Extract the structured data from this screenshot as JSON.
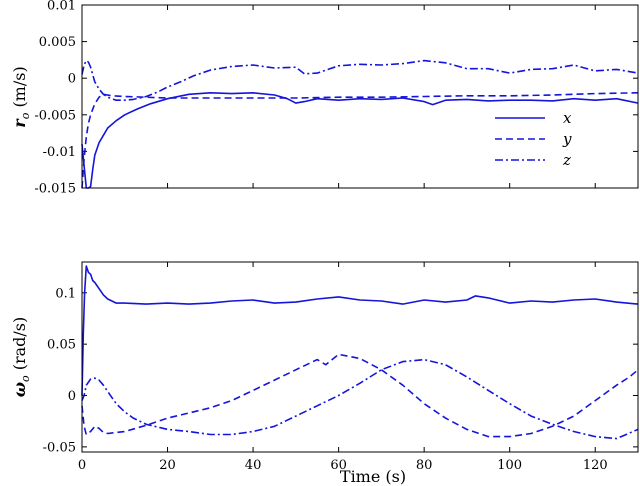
{
  "chart_data": [
    {
      "type": "line",
      "panel": "top",
      "ylabel": "r_o (m/s)",
      "ylabel_symbol": "r",
      "ylabel_subscript": "o",
      "ylabel_unit": " (m/s)",
      "xlim": [
        0,
        130
      ],
      "ylim": [
        -0.015,
        0.01
      ],
      "xticks": [
        0,
        20,
        40,
        60,
        80,
        100,
        120
      ],
      "yticks": [
        -0.015,
        -0.01,
        -0.005,
        0,
        0.005,
        0.01
      ],
      "ytick_labels": [
        "-0.015",
        "-0.01",
        "-0.005",
        "0",
        "0.005",
        "0.01"
      ],
      "xtick_labels_visible": false,
      "color": "#1414dc",
      "legend": {
        "position": "right",
        "entries": [
          "x",
          "y",
          "z"
        ]
      },
      "series": [
        {
          "name": "x",
          "dash": "solid",
          "x": [
            0,
            0.5,
            1,
            1.5,
            2,
            2.5,
            3,
            4,
            5,
            6,
            8,
            10,
            13,
            16,
            20,
            25,
            30,
            35,
            40,
            45,
            48,
            50,
            52,
            55,
            60,
            65,
            70,
            75,
            80,
            82,
            85,
            90,
            95,
            100,
            105,
            110,
            115,
            120,
            125,
            130
          ],
          "y": [
            -0.009,
            -0.012,
            -0.015,
            -0.0155,
            -0.0148,
            -0.0125,
            -0.0105,
            -0.0088,
            -0.0078,
            -0.0068,
            -0.0058,
            -0.005,
            -0.0042,
            -0.0035,
            -0.0028,
            -0.0022,
            -0.002,
            -0.0021,
            -0.002,
            -0.0023,
            -0.0028,
            -0.0034,
            -0.0032,
            -0.0028,
            -0.003,
            -0.0028,
            -0.0029,
            -0.0027,
            -0.0032,
            -0.0036,
            -0.003,
            -0.0029,
            -0.0031,
            -0.003,
            -0.003,
            -0.0031,
            -0.0028,
            -0.003,
            -0.0028,
            -0.0034
          ]
        },
        {
          "name": "y",
          "dash": "dashed",
          "x": [
            0,
            0.5,
            1,
            1.5,
            2,
            3,
            4,
            5,
            7,
            10,
            15,
            20,
            30,
            40,
            50,
            60,
            70,
            80,
            90,
            100,
            110,
            120,
            130
          ],
          "y": [
            -0.015,
            -0.011,
            -0.008,
            -0.0062,
            -0.005,
            -0.0035,
            -0.0026,
            -0.0022,
            -0.0024,
            -0.0025,
            -0.0026,
            -0.0027,
            -0.0027,
            -0.0027,
            -0.0027,
            -0.0026,
            -0.0026,
            -0.0025,
            -0.0024,
            -0.0024,
            -0.0023,
            -0.0021,
            -0.002
          ]
        },
        {
          "name": "z",
          "dash": "dashdot",
          "x": [
            0,
            0.5,
            1,
            1.5,
            2,
            3,
            4,
            5,
            6,
            7,
            8,
            10,
            12,
            15,
            18,
            20,
            23,
            26,
            30,
            35,
            40,
            45,
            50,
            52,
            55,
            60,
            65,
            70,
            75,
            80,
            85,
            90,
            95,
            100,
            105,
            110,
            115,
            120,
            125,
            130
          ],
          "y": [
            0.0005,
            0.0018,
            0.0024,
            0.0022,
            0.0015,
            -0.0005,
            -0.0015,
            -0.0022,
            -0.0026,
            -0.0028,
            -0.003,
            -0.003,
            -0.0029,
            -0.0025,
            -0.0018,
            -0.0012,
            -0.0005,
            0.0003,
            0.0011,
            0.0016,
            0.0018,
            0.0014,
            0.0015,
            0.0006,
            0.0007,
            0.0017,
            0.0019,
            0.0018,
            0.002,
            0.0024,
            0.0021,
            0.0013,
            0.0013,
            0.0007,
            0.0012,
            0.0013,
            0.0018,
            0.001,
            0.0012,
            0.0007
          ]
        }
      ]
    },
    {
      "type": "line",
      "panel": "bottom",
      "xlabel": "Time (s)",
      "ylabel": "ω_o (rad/s)",
      "ylabel_symbol": "ω",
      "ylabel_subscript": "o",
      "ylabel_unit": " (rad/s)",
      "xlim": [
        0,
        130
      ],
      "ylim": [
        -0.055,
        0.13
      ],
      "xticks": [
        0,
        20,
        40,
        60,
        80,
        100,
        120
      ],
      "xtick_labels": [
        "0",
        "20",
        "40",
        "60",
        "80",
        "100",
        "120"
      ],
      "yticks": [
        -0.05,
        0,
        0.05,
        0.1
      ],
      "ytick_labels": [
        "-0.05",
        "0",
        "0.05",
        "0.1"
      ],
      "color": "#1414dc",
      "series": [
        {
          "name": "x",
          "dash": "solid",
          "x": [
            0,
            0.3,
            0.6,
            1,
            1.5,
            2,
            2.5,
            3,
            4,
            5,
            6,
            7,
            8,
            10,
            15,
            20,
            25,
            30,
            35,
            40,
            45,
            50,
            55,
            60,
            65,
            70,
            75,
            80,
            85,
            90,
            92,
            95,
            100,
            105,
            110,
            115,
            120,
            125,
            130
          ],
          "y": [
            0,
            0.06,
            0.1,
            0.126,
            0.12,
            0.118,
            0.112,
            0.11,
            0.104,
            0.098,
            0.094,
            0.092,
            0.09,
            0.09,
            0.089,
            0.09,
            0.089,
            0.09,
            0.092,
            0.093,
            0.09,
            0.091,
            0.094,
            0.096,
            0.093,
            0.092,
            0.089,
            0.093,
            0.091,
            0.093,
            0.097,
            0.095,
            0.09,
            0.092,
            0.091,
            0.093,
            0.094,
            0.091,
            0.089
          ]
        },
        {
          "name": "y",
          "dash": "dashed",
          "x": [
            0,
            0.5,
            1,
            2,
            3,
            4,
            5,
            6,
            8,
            10,
            15,
            20,
            25,
            30,
            35,
            40,
            45,
            50,
            55,
            57,
            60,
            65,
            70,
            75,
            80,
            85,
            90,
            95,
            100,
            105,
            110,
            115,
            120,
            125,
            128,
            130
          ],
          "y": [
            -0.01,
            -0.03,
            -0.038,
            -0.035,
            -0.03,
            -0.032,
            -0.036,
            -0.037,
            -0.036,
            -0.035,
            -0.029,
            -0.022,
            -0.017,
            -0.012,
            -0.005,
            0.005,
            0.015,
            0.025,
            0.035,
            0.03,
            0.04,
            0.036,
            0.025,
            0.01,
            -0.008,
            -0.022,
            -0.033,
            -0.04,
            -0.04,
            -0.037,
            -0.03,
            -0.02,
            -0.005,
            0.01,
            0.018,
            0.025
          ]
        },
        {
          "name": "z",
          "dash": "dashdot",
          "x": [
            0,
            0.5,
            1,
            2,
            3,
            4,
            5,
            6,
            7,
            8,
            10,
            12,
            15,
            20,
            25,
            30,
            35,
            40,
            45,
            50,
            55,
            60,
            65,
            70,
            75,
            80,
            85,
            90,
            95,
            100,
            105,
            110,
            115,
            120,
            125,
            130
          ],
          "y": [
            -0.005,
            0,
            0.01,
            0.016,
            0.017,
            0.015,
            0.01,
            0.004,
            -0.002,
            -0.008,
            -0.016,
            -0.022,
            -0.028,
            -0.033,
            -0.035,
            -0.038,
            -0.038,
            -0.035,
            -0.03,
            -0.02,
            -0.01,
            0,
            0.012,
            0.025,
            0.033,
            0.035,
            0.03,
            0.018,
            0.005,
            -0.008,
            -0.02,
            -0.028,
            -0.035,
            -0.04,
            -0.042,
            -0.033
          ]
        }
      ]
    }
  ]
}
